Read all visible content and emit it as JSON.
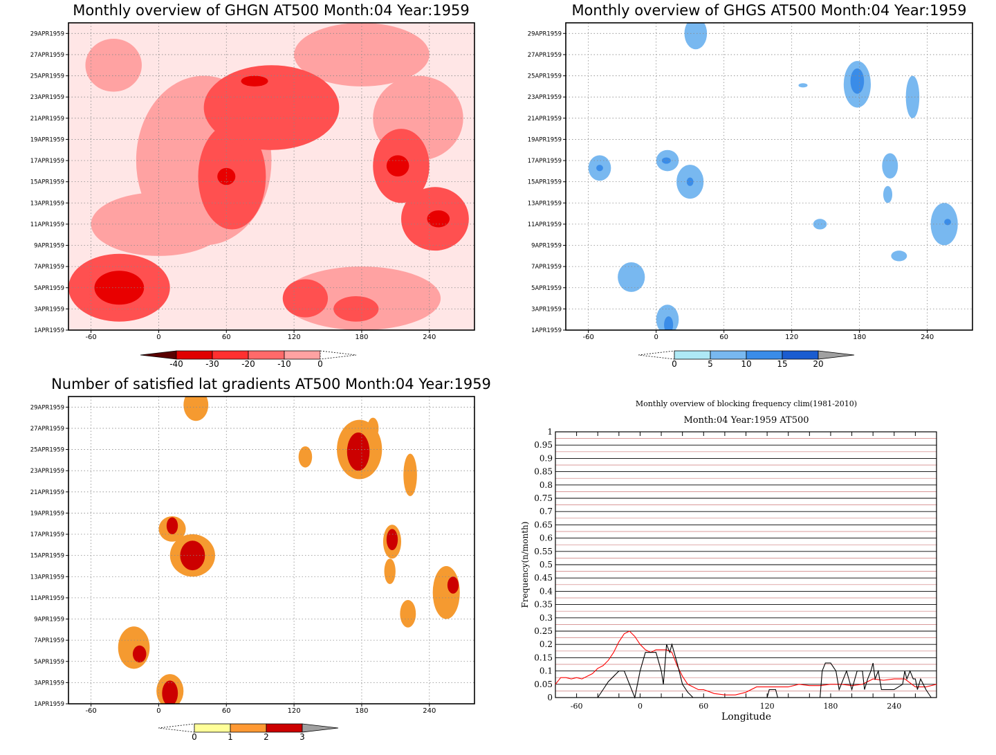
{
  "chart_data": [
    {
      "type": "heatmap",
      "title": "Monthly overview of GHGN AT500 Month:04 Year:1959",
      "x_ticks": [
        "-60",
        "0",
        "60",
        "120",
        "180",
        "240"
      ],
      "x_range": [
        -80,
        280
      ],
      "y_ticks": [
        "1APR1959",
        "3APR1959",
        "5APR1959",
        "7APR1959",
        "9APR1959",
        "11APR1959",
        "13APR1959",
        "15APR1959",
        "17APR1959",
        "19APR1959",
        "21APR1959",
        "23APR1959",
        "25APR1959",
        "27APR1959",
        "29APR1959"
      ],
      "y_range": [
        1,
        30
      ],
      "colorbar": {
        "labels": [
          "-40",
          "-30",
          "-20",
          "-10",
          "0"
        ],
        "colors": [
          "#5a0000",
          "#e00000",
          "#ff3030",
          "#ff6a6a",
          "#ffa2a2",
          "#ffe6e6"
        ]
      },
      "levels": [
        "#ffe6e6",
        "#ffa2a2",
        "#ff5050",
        "#e80000"
      ],
      "blobs": [
        {
          "x": -35,
          "y": 5,
          "rx": 45,
          "ry": 3.2,
          "level": 2
        },
        {
          "x": -35,
          "y": 5,
          "rx": 22,
          "ry": 1.6,
          "level": 3
        },
        {
          "x": 40,
          "y": 17,
          "rx": 60,
          "ry": 8,
          "level": 1
        },
        {
          "x": 65,
          "y": 15.5,
          "rx": 30,
          "ry": 5,
          "level": 2
        },
        {
          "x": 60,
          "y": 15.5,
          "rx": 8,
          "ry": 0.8,
          "level": 3
        },
        {
          "x": 100,
          "y": 22,
          "rx": 60,
          "ry": 4,
          "level": 2
        },
        {
          "x": 85,
          "y": 24.5,
          "rx": 12,
          "ry": 0.5,
          "level": 3
        },
        {
          "x": 215,
          "y": 16.5,
          "rx": 25,
          "ry": 3.5,
          "level": 2
        },
        {
          "x": 212,
          "y": 16.5,
          "rx": 10,
          "ry": 1,
          "level": 3
        },
        {
          "x": 245,
          "y": 11.5,
          "rx": 30,
          "ry": 3,
          "level": 2
        },
        {
          "x": 248,
          "y": 11.5,
          "rx": 10,
          "ry": 0.8,
          "level": 3
        },
        {
          "x": 180,
          "y": 27,
          "rx": 60,
          "ry": 3,
          "level": 1
        },
        {
          "x": -40,
          "y": 26,
          "rx": 25,
          "ry": 2.5,
          "level": 1
        },
        {
          "x": 180,
          "y": 4,
          "rx": 70,
          "ry": 3,
          "level": 1
        },
        {
          "x": 175,
          "y": 3,
          "rx": 20,
          "ry": 1.2,
          "level": 2
        },
        {
          "x": 130,
          "y": 4,
          "rx": 20,
          "ry": 1.8,
          "level": 2
        },
        {
          "x": 0,
          "y": 11,
          "rx": 60,
          "ry": 3,
          "level": 1
        },
        {
          "x": 230,
          "y": 21,
          "rx": 40,
          "ry": 4,
          "level": 1
        }
      ]
    },
    {
      "type": "heatmap",
      "title": "Monthly overview of GHGS AT500 Month:04 Year:1959",
      "x_ticks": [
        "-60",
        "0",
        "60",
        "120",
        "180",
        "240"
      ],
      "x_range": [
        -80,
        280
      ],
      "y_ticks": [
        "1APR1959",
        "3APR1959",
        "5APR1959",
        "7APR1959",
        "9APR1959",
        "11APR1959",
        "13APR1959",
        "15APR1959",
        "17APR1959",
        "19APR1959",
        "21APR1959",
        "23APR1959",
        "25APR1959",
        "27APR1959",
        "29APR1959"
      ],
      "y_range": [
        1,
        30
      ],
      "colorbar": {
        "labels": [
          "0",
          "5",
          "10",
          "15",
          "20"
        ],
        "colors": [
          "#ffffff",
          "#aee9f5",
          "#78b8f0",
          "#3a8ce8",
          "#1a5cd0",
          "#a0a0a0"
        ]
      },
      "levels": [
        "#aee9f5",
        "#78b8f0",
        "#3a8ce8"
      ],
      "blobs": [
        {
          "x": 35,
          "y": 29,
          "rx": 10,
          "ry": 1.5,
          "level": 1
        },
        {
          "x": 178,
          "y": 24.2,
          "rx": 12,
          "ry": 2.2,
          "level": 1
        },
        {
          "x": 178,
          "y": 24.5,
          "rx": 6,
          "ry": 1.2,
          "level": 2
        },
        {
          "x": 178,
          "y": 25,
          "rx": 3,
          "ry": 0.5,
          "level": 3
        },
        {
          "x": 227,
          "y": 23,
          "rx": 6,
          "ry": 2,
          "level": 1
        },
        {
          "x": 130,
          "y": 24.1,
          "rx": 4,
          "ry": 0.2,
          "level": 1
        },
        {
          "x": -50,
          "y": 16.3,
          "rx": 10,
          "ry": 1.2,
          "level": 1
        },
        {
          "x": -50,
          "y": 16.3,
          "rx": 3,
          "ry": 0.3,
          "level": 2
        },
        {
          "x": 10,
          "y": 17,
          "rx": 10,
          "ry": 1,
          "level": 1
        },
        {
          "x": 9,
          "y": 17,
          "rx": 4,
          "ry": 0.3,
          "level": 2
        },
        {
          "x": 30,
          "y": 15,
          "rx": 12,
          "ry": 1.6,
          "level": 1
        },
        {
          "x": 30,
          "y": 15,
          "rx": 3,
          "ry": 0.4,
          "level": 2
        },
        {
          "x": -22,
          "y": 6,
          "rx": 12,
          "ry": 1.4,
          "level": 1
        },
        {
          "x": 10,
          "y": 2,
          "rx": 10,
          "ry": 1.4,
          "level": 1
        },
        {
          "x": 11,
          "y": 1.5,
          "rx": 4,
          "ry": 0.8,
          "level": 2
        },
        {
          "x": 207,
          "y": 16.5,
          "rx": 7,
          "ry": 1.2,
          "level": 1
        },
        {
          "x": 205,
          "y": 13.8,
          "rx": 4,
          "ry": 0.8,
          "level": 1
        },
        {
          "x": 145,
          "y": 11,
          "rx": 6,
          "ry": 0.5,
          "level": 1
        },
        {
          "x": 255,
          "y": 11,
          "rx": 12,
          "ry": 2,
          "level": 1
        },
        {
          "x": 258,
          "y": 11.2,
          "rx": 3,
          "ry": 0.3,
          "level": 2
        },
        {
          "x": 215,
          "y": 8,
          "rx": 7,
          "ry": 0.5,
          "level": 1
        }
      ]
    },
    {
      "type": "heatmap",
      "title": "Number of satisfied lat gradients AT500 Month:04 Year:1959",
      "x_ticks": [
        "-60",
        "0",
        "60",
        "120",
        "180",
        "240"
      ],
      "x_range": [
        -80,
        280
      ],
      "y_ticks": [
        "1APR1959",
        "3APR1959",
        "5APR1959",
        "7APR1959",
        "9APR1959",
        "11APR1959",
        "13APR1959",
        "15APR1959",
        "17APR1959",
        "19APR1959",
        "21APR1959",
        "23APR1959",
        "25APR1959",
        "27APR1959",
        "29APR1959"
      ],
      "y_range": [
        1,
        30
      ],
      "colorbar": {
        "labels": [
          "0",
          "1",
          "2",
          "3"
        ],
        "colors": [
          "#ffffff",
          "#ffff99",
          "#ff9933",
          "#cc0000",
          "#a0a0a0"
        ]
      },
      "levels": [
        "#ffff99",
        "#f59a30",
        "#cc0000"
      ],
      "blobs": [
        {
          "x": 33,
          "y": 29.2,
          "rx": 11,
          "ry": 1.5,
          "level": 1
        },
        {
          "x": 178,
          "y": 25,
          "rx": 20,
          "ry": 2.8,
          "level": 1
        },
        {
          "x": 177,
          "y": 24.8,
          "rx": 10,
          "ry": 1.8,
          "level": 2
        },
        {
          "x": 190,
          "y": 27,
          "rx": 5,
          "ry": 1,
          "level": 1
        },
        {
          "x": 130,
          "y": 24.3,
          "rx": 6,
          "ry": 1,
          "level": 1
        },
        {
          "x": 223,
          "y": 22.6,
          "rx": 6,
          "ry": 2,
          "level": 1
        },
        {
          "x": 12,
          "y": 17.5,
          "rx": 12,
          "ry": 1.2,
          "level": 1
        },
        {
          "x": 12,
          "y": 17.8,
          "rx": 5,
          "ry": 0.8,
          "level": 2
        },
        {
          "x": 30,
          "y": 15,
          "rx": 20,
          "ry": 2,
          "level": 1
        },
        {
          "x": 30,
          "y": 15,
          "rx": 11,
          "ry": 1.4,
          "level": 2
        },
        {
          "x": 207,
          "y": 16.3,
          "rx": 8,
          "ry": 1.6,
          "level": 1
        },
        {
          "x": 207,
          "y": 16.5,
          "rx": 5,
          "ry": 1,
          "level": 2
        },
        {
          "x": 205,
          "y": 13.5,
          "rx": 5,
          "ry": 1.2,
          "level": 1
        },
        {
          "x": 255,
          "y": 11.5,
          "rx": 12,
          "ry": 2.5,
          "level": 1
        },
        {
          "x": 261,
          "y": 12.2,
          "rx": 5,
          "ry": 0.8,
          "level": 2
        },
        {
          "x": 221,
          "y": 9.5,
          "rx": 7,
          "ry": 1.3,
          "level": 1
        },
        {
          "x": -22,
          "y": 6.3,
          "rx": 14,
          "ry": 2,
          "level": 1
        },
        {
          "x": -17,
          "y": 5.7,
          "rx": 6,
          "ry": 0.8,
          "level": 2
        },
        {
          "x": 10,
          "y": 2.2,
          "rx": 12,
          "ry": 1.6,
          "level": 1
        },
        {
          "x": 10,
          "y": 2,
          "rx": 7,
          "ry": 1.2,
          "level": 2
        },
        {
          "x": 11,
          "y": 1.5,
          "rx": 3,
          "ry": 0.7,
          "level": 3
        }
      ]
    },
    {
      "type": "line",
      "title": "Monthly overview of blocking frequency clim(1981-2010)",
      "subtitle": "Month:04 Year:1959  AT500",
      "xlabel": "Longitude",
      "ylabel": "Frequency(n/month)",
      "x_ticks": [
        "-60",
        "0",
        "60",
        "120",
        "180",
        "240"
      ],
      "xlim": [
        -80,
        280
      ],
      "ylim": [
        0,
        1
      ],
      "y_ticks": [
        "0",
        "0.05",
        "0.1",
        "0.15",
        "0.2",
        "0.25",
        "0.3",
        "0.35",
        "0.4",
        "0.45",
        "0.5",
        "0.55",
        "0.6",
        "0.65",
        "0.7",
        "0.75",
        "0.8",
        "0.85",
        "0.9",
        "0.95",
        "1"
      ],
      "series": [
        {
          "color": "#ff0000",
          "x": [
            -80,
            -75,
            -70,
            -65,
            -60,
            -55,
            -50,
            -45,
            -40,
            -35,
            -30,
            -25,
            -20,
            -15,
            -10,
            -5,
            0,
            5,
            10,
            15,
            20,
            25,
            30,
            35,
            40,
            45,
            50,
            55,
            60,
            70,
            80,
            90,
            100,
            110,
            120,
            130,
            140,
            150,
            160,
            170,
            180,
            190,
            200,
            210,
            220,
            230,
            240,
            250,
            260,
            270,
            280
          ],
          "values": [
            0.05,
            0.075,
            0.075,
            0.07,
            0.075,
            0.07,
            0.08,
            0.09,
            0.11,
            0.12,
            0.14,
            0.17,
            0.21,
            0.24,
            0.25,
            0.23,
            0.2,
            0.18,
            0.17,
            0.18,
            0.18,
            0.18,
            0.17,
            0.12,
            0.08,
            0.05,
            0.04,
            0.03,
            0.03,
            0.015,
            0.01,
            0.01,
            0.02,
            0.04,
            0.04,
            0.04,
            0.04,
            0.05,
            0.045,
            0.045,
            0.05,
            0.05,
            0.045,
            0.05,
            0.07,
            0.065,
            0.07,
            0.07,
            0.04,
            0.04,
            0.05
          ]
        },
        {
          "color": "#000000",
          "x": [
            -80,
            -40,
            -35,
            -30,
            -25,
            -20,
            -15,
            -10,
            -5,
            0,
            5,
            10,
            15,
            20,
            22,
            25,
            28,
            30,
            35,
            40,
            45,
            50,
            120,
            122,
            125,
            128,
            130,
            170,
            172,
            175,
            180,
            185,
            188,
            190,
            195,
            200,
            205,
            210,
            212,
            215,
            218,
            220,
            222,
            225,
            228,
            230,
            240,
            248,
            250,
            252,
            255,
            258,
            260,
            262,
            265,
            270,
            275
          ],
          "values": [
            0,
            0,
            0.03,
            0.06,
            0.08,
            0.1,
            0.1,
            0.05,
            0,
            0.1,
            0.17,
            0.17,
            0.17,
            0.1,
            0.05,
            0.2,
            0.17,
            0.2,
            0.13,
            0.05,
            0.02,
            0,
            0,
            0.03,
            0.03,
            0.03,
            0,
            0,
            0.1,
            0.13,
            0.13,
            0.1,
            0.03,
            0.05,
            0.1,
            0.03,
            0.1,
            0.1,
            0.03,
            0.07,
            0.1,
            0.13,
            0.07,
            0.1,
            0.03,
            0.03,
            0.03,
            0.05,
            0.1,
            0.07,
            0.1,
            0.07,
            0.07,
            0.03,
            0.07,
            0.03,
            0
          ]
        }
      ]
    }
  ]
}
